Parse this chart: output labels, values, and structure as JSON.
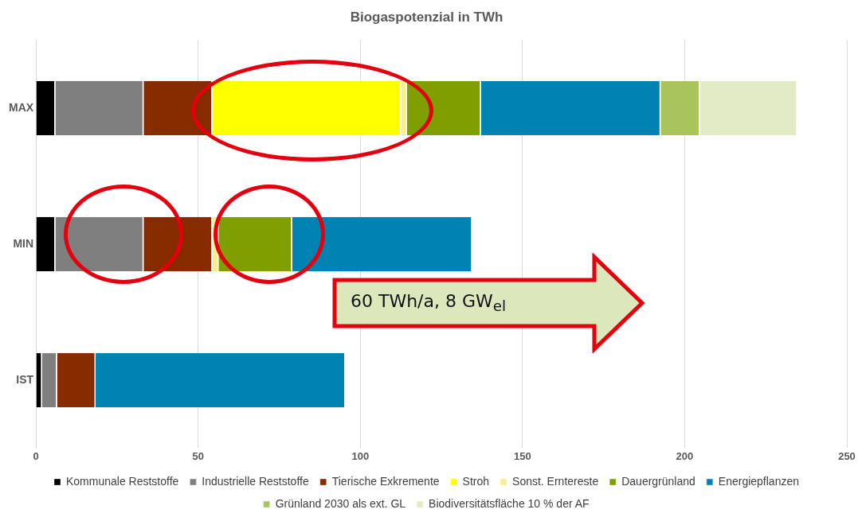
{
  "chart_data": {
    "type": "bar",
    "orientation": "horizontal",
    "stacked": true,
    "title": "Biogaspotenzial in TWh",
    "categories": [
      "MAX",
      "MIN",
      "IST"
    ],
    "series": [
      {
        "name": "Kommunale Reststoffe",
        "color": "#000000",
        "values": [
          6,
          6,
          1.9
        ]
      },
      {
        "name": "Industrielle Reststoffe",
        "color": "#7f7f7f",
        "values": [
          27.2,
          27.2,
          4.6
        ]
      },
      {
        "name": "Tierische Exkremente",
        "color": "#862b00",
        "values": [
          21.2,
          21.2,
          11.9
        ]
      },
      {
        "name": "Stroh",
        "color": "#ffff00",
        "values": [
          58.2,
          null,
          null
        ]
      },
      {
        "name": "Sonst. Erntereste",
        "color": "#f6f08c",
        "values": [
          1.8,
          1.9,
          null
        ]
      },
      {
        "name": "Dauergrünland",
        "color": "#7f9f00",
        "values": [
          22.8,
          22.7,
          null
        ]
      },
      {
        "name": "Energiepflanzen",
        "color": "#0083b3",
        "values": [
          55.4,
          55.5,
          77
        ]
      },
      {
        "name": "Grünland 2030 als ext. GL",
        "color": "#a9c45a",
        "values": [
          12.1,
          null,
          null
        ]
      },
      {
        "name": "Biodiversitätsfläche 10 % der AF",
        "color": "#e2ebc6",
        "values": [
          30,
          null,
          null
        ]
      }
    ],
    "xlim": [
      0,
      250
    ],
    "xticks": [
      0,
      50,
      100,
      150,
      200,
      250
    ],
    "grid": "x",
    "legend": "bottom",
    "annotations": [
      "60 TWh/a, 8 GW$_{el}$"
    ]
  }
}
